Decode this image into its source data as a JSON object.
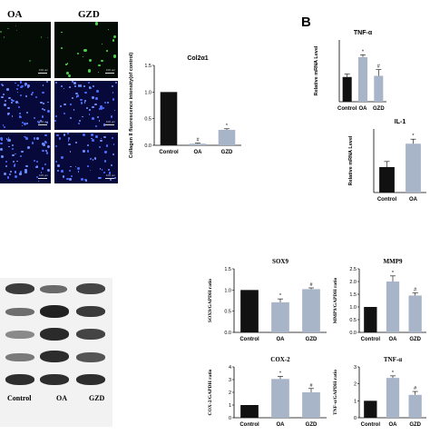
{
  "figure": {
    "panel_b_label": "B",
    "micro_col_labels": [
      "OA",
      "GZD"
    ],
    "scale_text": "100 μm",
    "blot_labels": [
      "Control",
      "OA",
      "GZD"
    ]
  },
  "colors": {
    "control": "#111111",
    "oa": "#a8b4c8",
    "gzd": "#a8b4c8",
    "blue_field": "#06093a",
    "green_field": "#050b05"
  },
  "chart_data": [
    {
      "id": "col2a1",
      "type": "bar",
      "title": "Col2α1",
      "ylabel": "Collagen II fluorescence intensity(of control)",
      "categories": [
        "Control",
        "OA",
        "GZD"
      ],
      "values": [
        1.0,
        0.03,
        0.29
      ],
      "errors": [
        0.0,
        0.01,
        0.02
      ],
      "sig": [
        "",
        "#",
        "*"
      ],
      "ylim": [
        0,
        1.5
      ],
      "yticks": [
        "0.0",
        "0.5",
        "1.0",
        "1.5"
      ]
    },
    {
      "id": "tnf_mrna",
      "type": "bar",
      "title": "TNF-α",
      "ylabel": "Relative mRNA Level",
      "categories": [
        "Control",
        "OA",
        "GZD"
      ],
      "values": [
        1.0,
        1.8,
        1.05
      ],
      "errors": [
        0.12,
        0.1,
        0.25
      ],
      "sig": [
        "",
        "*",
        "#"
      ],
      "ylim": [
        0,
        2.5
      ],
      "yticks": []
    },
    {
      "id": "il1b_mrna",
      "type": "bar",
      "title": "IL-1",
      "ylabel": "Relative mRNA Level",
      "categories": [
        "Control",
        "OA"
      ],
      "values": [
        1.0,
        1.92
      ],
      "errors": [
        0.22,
        0.18
      ],
      "sig": [
        "",
        "*"
      ],
      "ylim": [
        0,
        2.5
      ],
      "yticks": []
    },
    {
      "id": "sox9",
      "type": "bar",
      "title": "SOX9",
      "ylabel": "SOX9/GAPDH ratio",
      "categories": [
        "Control",
        "OA",
        "GZD"
      ],
      "values": [
        1.0,
        0.71,
        1.02
      ],
      "errors": [
        0.0,
        0.08,
        0.03
      ],
      "sig": [
        "",
        "*",
        "#"
      ],
      "ylim": [
        0,
        1.5
      ],
      "yticks": [
        "0.0",
        "0.5",
        "1.0",
        "1.5"
      ]
    },
    {
      "id": "mmp9",
      "type": "bar",
      "title": "MMP9",
      "ylabel": "MMP9/GAPDH ratio",
      "categories": [
        "Control",
        "OA",
        "GZD"
      ],
      "values": [
        1.0,
        2.0,
        1.45
      ],
      "errors": [
        0.0,
        0.22,
        0.1
      ],
      "sig": [
        "",
        "*",
        "#"
      ],
      "ylim": [
        0,
        2.5
      ],
      "yticks": [
        "0.0",
        "0.5",
        "1.0",
        "1.5",
        "2.0",
        "2.5"
      ]
    },
    {
      "id": "cox2",
      "type": "bar",
      "title": "COX-2",
      "ylabel": "COX-2/GAPDH ratio",
      "categories": [
        "Control",
        "OA",
        "GZD"
      ],
      "values": [
        1.0,
        3.05,
        2.0
      ],
      "errors": [
        0.0,
        0.2,
        0.3
      ],
      "sig": [
        "",
        "*",
        "#"
      ],
      "ylim": [
        0,
        4
      ],
      "yticks": [
        "0",
        "1",
        "2",
        "3",
        "4"
      ]
    },
    {
      "id": "tnf_wb",
      "type": "bar",
      "title": "TNF-α",
      "ylabel": "TNF-α/GAPDH ratio",
      "categories": [
        "Control",
        "OA",
        "GZD"
      ],
      "values": [
        1.0,
        2.35,
        1.35
      ],
      "errors": [
        0.0,
        0.12,
        0.2
      ],
      "sig": [
        "",
        "*",
        "#"
      ],
      "ylim": [
        0,
        3
      ],
      "yticks": [
        "0",
        "1",
        "2",
        "3"
      ]
    }
  ]
}
